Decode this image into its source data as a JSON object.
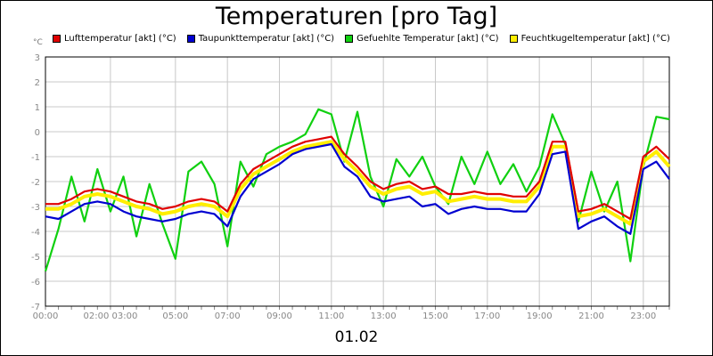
{
  "title": "Temperaturen [pro Tag]",
  "unit": "°C",
  "date": "01.02",
  "chart_data": {
    "type": "line",
    "title": "Temperaturen [pro Tag]",
    "xlabel": "01.02",
    "ylabel": "°C",
    "ylim": [
      -7,
      3
    ],
    "yticks": [
      3,
      2,
      1,
      0,
      -1,
      -2,
      -3,
      -4,
      -5,
      -6,
      -7
    ],
    "xlim": [
      0,
      24
    ],
    "xticks": [
      {
        "label": "00:00",
        "x": 0
      },
      {
        "label": "02:00 03:00",
        "x": 2.5
      },
      {
        "label": "05:00",
        "x": 5
      },
      {
        "label": "07:00",
        "x": 7
      },
      {
        "label": "09:00",
        "x": 9
      },
      {
        "label": "11:00",
        "x": 11
      },
      {
        "label": "13:00",
        "x": 13
      },
      {
        "label": "15:00",
        "x": 15
      },
      {
        "label": "17:00",
        "x": 17
      },
      {
        "label": "19:00",
        "x": 19
      },
      {
        "label": "21:00",
        "x": 21
      },
      {
        "label": "23:00",
        "x": 23
      }
    ],
    "grid": true,
    "legend_position": "top",
    "x": [
      0,
      0.5,
      1,
      1.5,
      2,
      2.5,
      3,
      3.5,
      4,
      4.5,
      5,
      5.5,
      6,
      6.5,
      7,
      7.5,
      8,
      8.5,
      9,
      9.5,
      10,
      10.5,
      11,
      11.5,
      12,
      12.5,
      13,
      13.5,
      14,
      14.5,
      15,
      15.5,
      16,
      16.5,
      17,
      17.5,
      18,
      18.5,
      19,
      19.5,
      20,
      20.5,
      21,
      21.5,
      22,
      22.5,
      23,
      23.5,
      24
    ],
    "series": [
      {
        "name": "Lufttemperatur [akt] (°C)",
        "color": "#e00000",
        "values": [
          -2.9,
          -2.9,
          -2.7,
          -2.4,
          -2.3,
          -2.4,
          -2.6,
          -2.8,
          -2.9,
          -3.1,
          -3.0,
          -2.8,
          -2.7,
          -2.8,
          -3.2,
          -2.1,
          -1.5,
          -1.2,
          -0.9,
          -0.6,
          -0.4,
          -0.3,
          -0.2,
          -0.9,
          -1.4,
          -2.0,
          -2.3,
          -2.1,
          -2.0,
          -2.3,
          -2.2,
          -2.5,
          -2.5,
          -2.4,
          -2.5,
          -2.5,
          -2.6,
          -2.6,
          -2.0,
          -0.4,
          -0.4,
          -3.2,
          -3.1,
          -2.9,
          -3.2,
          -3.5,
          -1.0,
          -0.6,
          -1.1
        ]
      },
      {
        "name": "Taupunkttemperatur [akt] (°C)",
        "color": "#0000d0",
        "values": [
          -3.4,
          -3.5,
          -3.2,
          -2.9,
          -2.8,
          -2.9,
          -3.2,
          -3.4,
          -3.5,
          -3.6,
          -3.5,
          -3.3,
          -3.2,
          -3.3,
          -3.8,
          -2.6,
          -1.9,
          -1.6,
          -1.3,
          -0.9,
          -0.7,
          -0.6,
          -0.5,
          -1.4,
          -1.8,
          -2.6,
          -2.8,
          -2.7,
          -2.6,
          -3.0,
          -2.9,
          -3.3,
          -3.1,
          -3.0,
          -3.1,
          -3.1,
          -3.2,
          -3.2,
          -2.5,
          -0.9,
          -0.8,
          -3.9,
          -3.6,
          -3.4,
          -3.8,
          -4.1,
          -1.5,
          -1.2,
          -1.9
        ]
      },
      {
        "name": "Gefuehlte Temperatur [akt] (°C)",
        "color": "#10d010",
        "values": [
          -5.6,
          -3.9,
          -1.8,
          -3.6,
          -1.5,
          -3.2,
          -1.8,
          -4.2,
          -2.1,
          -3.7,
          -5.1,
          -1.6,
          -1.2,
          -2.1,
          -4.6,
          -1.2,
          -2.2,
          -0.9,
          -0.6,
          -0.4,
          -0.1,
          0.9,
          0.7,
          -1.2,
          0.8,
          -1.8,
          -3.0,
          -1.1,
          -1.8,
          -1.0,
          -2.2,
          -2.9,
          -1.0,
          -2.1,
          -0.8,
          -2.1,
          -1.3,
          -2.4,
          -1.4,
          0.7,
          -0.5,
          -3.6,
          -1.6,
          -3.2,
          -2.0,
          -5.2,
          -1.4,
          0.6,
          0.5
        ]
      },
      {
        "name": "Feuchtkugeltemperatur [akt] (°C)",
        "color": "#ffee00",
        "values": [
          -3.1,
          -3.1,
          -2.9,
          -2.6,
          -2.5,
          -2.6,
          -2.8,
          -3.0,
          -3.1,
          -3.3,
          -3.2,
          -3.0,
          -2.9,
          -3.0,
          -3.4,
          -2.3,
          -1.7,
          -1.4,
          -1.1,
          -0.8,
          -0.6,
          -0.5,
          -0.4,
          -1.1,
          -1.6,
          -2.2,
          -2.5,
          -2.3,
          -2.2,
          -2.5,
          -2.4,
          -2.8,
          -2.7,
          -2.6,
          -2.7,
          -2.7,
          -2.8,
          -2.8,
          -2.2,
          -0.6,
          -0.6,
          -3.4,
          -3.3,
          -3.1,
          -3.4,
          -3.7,
          -1.2,
          -0.8,
          -1.4
        ]
      }
    ]
  }
}
